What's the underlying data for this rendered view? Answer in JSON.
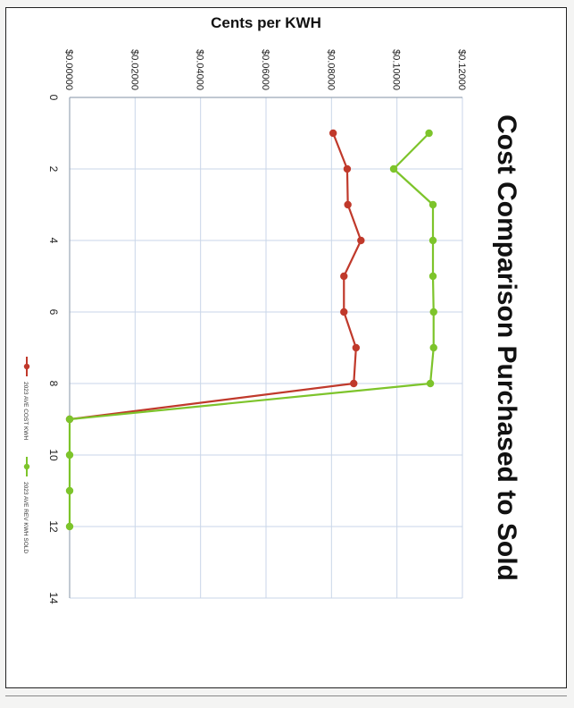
{
  "chart_data": {
    "type": "line",
    "title": "Cost Comparison Purchased to Sold",
    "ylabel": "Cents per KWH",
    "xlabel": "",
    "orientation": "rotated 90° clockwise (page is sideways)",
    "xlim": [
      0,
      14
    ],
    "ylim": [
      0,
      0.12
    ],
    "x_ticks": [
      "0",
      "2",
      "4",
      "6",
      "8",
      "10",
      "12",
      "14"
    ],
    "y_ticks": [
      "$0.00000",
      "$0.02000",
      "$0.04000",
      "$0.06000",
      "$0.08000",
      "$0.10000",
      "$0.12000"
    ],
    "grid": true,
    "legend_position": "bottom",
    "series": [
      {
        "name": "2023 AVE COST KWH",
        "color": "#c0392b",
        "x": [
          1,
          2,
          3,
          4,
          5,
          6,
          7,
          8,
          9
        ],
        "y": [
          0.0805,
          0.0848,
          0.085,
          0.089,
          0.0838,
          0.0838,
          0.0875,
          0.0868,
          0.0
        ]
      },
      {
        "name": "2023 AVE REV KWH SOLD",
        "color": "#7dc42b",
        "x": [
          1,
          2,
          3,
          4,
          5,
          6,
          7,
          8,
          9,
          10,
          11,
          12
        ],
        "y": [
          0.1098,
          0.099,
          0.111,
          0.111,
          0.111,
          0.1112,
          0.1112,
          0.1102,
          0.0,
          0.0,
          0.0,
          0.0
        ]
      }
    ]
  }
}
